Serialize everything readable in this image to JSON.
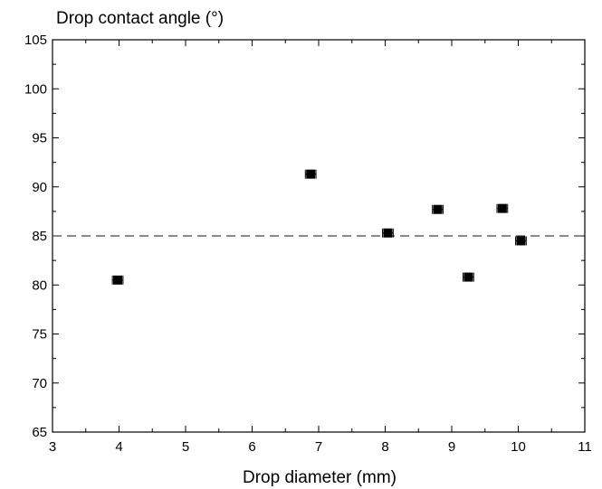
{
  "chart_data": {
    "type": "scatter",
    "title": "",
    "xlabel": "Drop diameter (mm)",
    "ylabel": "Drop contact angle (°)",
    "xlim": [
      3,
      11
    ],
    "ylim": [
      65,
      105
    ],
    "x_ticks": [
      3,
      4,
      5,
      6,
      7,
      8,
      9,
      10,
      11
    ],
    "y_ticks": [
      65,
      70,
      75,
      80,
      85,
      90,
      95,
      100,
      105
    ],
    "grid": false,
    "legend": "none",
    "marker": "square",
    "marker_color": "#000000",
    "error_bars": "horizontal",
    "reference_line": {
      "y": 85,
      "style": "dashed",
      "color": "#444444"
    },
    "series": [
      {
        "points": [
          {
            "x": 3.98,
            "y": 80.5,
            "xerr": 0.08
          },
          {
            "x": 6.88,
            "y": 91.3,
            "xerr": 0.08
          },
          {
            "x": 8.04,
            "y": 85.3,
            "xerr": 0.08
          },
          {
            "x": 8.79,
            "y": 87.7,
            "xerr": 0.08
          },
          {
            "x": 9.25,
            "y": 80.8,
            "xerr": 0.08
          },
          {
            "x": 9.76,
            "y": 87.8,
            "xerr": 0.08
          },
          {
            "x": 10.04,
            "y": 84.5,
            "xerr": 0.08
          }
        ]
      }
    ]
  }
}
